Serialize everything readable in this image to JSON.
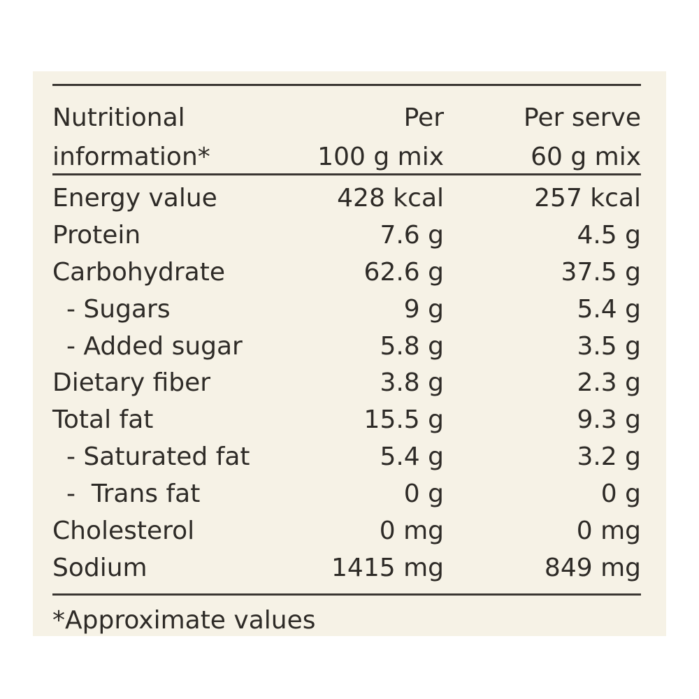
{
  "table": {
    "header": {
      "col1": [
        "Nutritional",
        "information*"
      ],
      "col2": [
        "Per",
        "100 g mix"
      ],
      "col3": [
        "Per serve",
        "60 g mix"
      ]
    },
    "rows": [
      {
        "label": "Energy value",
        "per100": "428 kcal",
        "perServe": "257 kcal",
        "sub": false
      },
      {
        "label": "Protein",
        "per100": "7.6 g",
        "perServe": "4.5 g",
        "sub": false
      },
      {
        "label": "Carbohydrate",
        "per100": "62.6 g",
        "perServe": "37.5 g",
        "sub": false
      },
      {
        "label": "- Sugars",
        "per100": "9 g",
        "perServe": "5.4 g",
        "sub": true
      },
      {
        "label": "- Added sugar",
        "per100": "5.8 g",
        "perServe": "3.5 g",
        "sub": true
      },
      {
        "label": "Dietary fiber",
        "per100": "3.8 g",
        "perServe": "2.3 g",
        "sub": false
      },
      {
        "label": "Total fat",
        "per100": "15.5 g",
        "perServe": "9.3 g",
        "sub": false
      },
      {
        "label": "- Saturated fat",
        "per100": "5.4 g",
        "perServe": "3.2 g",
        "sub": true
      },
      {
        "label": "-  Trans fat",
        "per100": "0 g",
        "perServe": "0 g",
        "sub": true
      },
      {
        "label": "Cholesterol",
        "per100": "0 mg",
        "perServe": "0 mg",
        "sub": false
      },
      {
        "label": "Sodium",
        "per100": "1415 mg",
        "perServe": "849 mg",
        "sub": false
      }
    ],
    "footnote": "*Approximate values"
  }
}
